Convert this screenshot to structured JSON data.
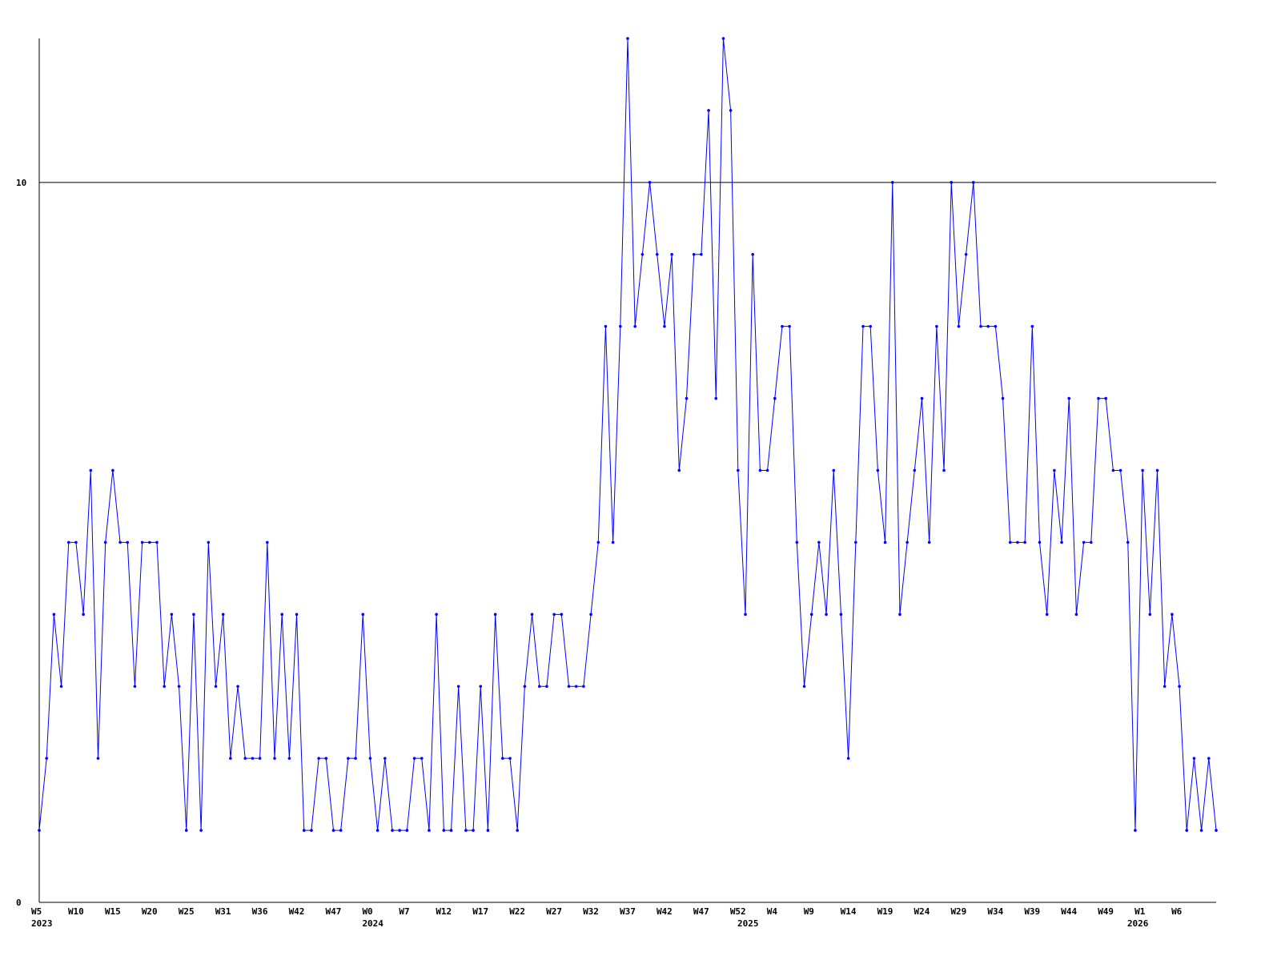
{
  "chart_data": {
    "type": "line",
    "categories": [
      "W5",
      null,
      null,
      null,
      null,
      "W10",
      null,
      null,
      null,
      null,
      "W15",
      null,
      null,
      null,
      null,
      "W20",
      null,
      null,
      null,
      null,
      "W25",
      null,
      null,
      null,
      null,
      "W31",
      null,
      null,
      null,
      null,
      "W36",
      null,
      null,
      null,
      null,
      "W42",
      null,
      null,
      null,
      null,
      "W47",
      null,
      null,
      null,
      null,
      "W0",
      null,
      null,
      null,
      null,
      "W7",
      null,
      null,
      null,
      null,
      "W12",
      null,
      null,
      null,
      null,
      "W17",
      null,
      null,
      null,
      null,
      "W22",
      null,
      null,
      null,
      null,
      "W27",
      null,
      null,
      null,
      null,
      "W32",
      null,
      null,
      null,
      null,
      "W37",
      null,
      null,
      null,
      null,
      "W42",
      null,
      null,
      null,
      null,
      "W47",
      null,
      null,
      null,
      null,
      "W52",
      null,
      null,
      null,
      null,
      "W4",
      null,
      null,
      null,
      null,
      "W9",
      null,
      null,
      null,
      null,
      "W14",
      null,
      null,
      null,
      null,
      "W19",
      null,
      null,
      null,
      null,
      "W24",
      null,
      null,
      null,
      null,
      "W29",
      null,
      null,
      null,
      null,
      "W34",
      null,
      null,
      null,
      null,
      "W39",
      null,
      null,
      null,
      null,
      "W44",
      null,
      null,
      null,
      null,
      "W49",
      null,
      null,
      null,
      null,
      "W1",
      null,
      null,
      null,
      null,
      "W6",
      null,
      null,
      null,
      null,
      null
    ],
    "category_years": [
      "2023",
      null,
      null,
      null,
      null,
      null,
      null,
      null,
      null,
      null,
      null,
      null,
      null,
      null,
      null,
      null,
      null,
      null,
      null,
      null,
      null,
      null,
      null,
      null,
      null,
      null,
      null,
      null,
      null,
      null,
      null,
      null,
      null,
      null,
      null,
      null,
      null,
      null,
      null,
      null,
      null,
      null,
      null,
      null,
      null,
      "2024",
      null,
      null,
      null,
      null,
      null,
      null,
      null,
      null,
      null,
      null,
      null,
      null,
      null,
      null,
      null,
      null,
      null,
      null,
      null,
      null,
      null,
      null,
      null,
      null,
      null,
      null,
      null,
      null,
      null,
      null,
      null,
      null,
      null,
      null,
      null,
      null,
      null,
      null,
      null,
      null,
      null,
      null,
      null,
      null,
      null,
      null,
      null,
      null,
      null,
      null,
      "2025",
      null,
      null,
      null,
      null,
      null,
      null,
      null,
      null,
      null,
      null,
      null,
      null,
      null,
      null,
      null,
      null,
      null,
      null,
      null,
      null,
      null,
      null,
      null,
      null,
      null,
      null,
      null,
      null,
      null,
      null,
      null,
      null,
      null,
      null,
      null,
      null,
      null,
      null,
      null,
      null,
      null,
      null,
      null,
      null,
      null,
      null,
      null,
      null,
      null,
      null,
      null,
      null,
      "2026",
      null,
      null,
      null,
      null,
      null,
      null,
      null,
      null,
      null,
      null,
      null
    ],
    "series": [
      {
        "color": "#0000ff",
        "values": [
          1,
          2,
          4,
          3,
          5,
          5,
          4,
          6,
          2,
          5,
          6,
          5,
          5,
          3,
          5,
          5,
          5,
          3,
          4,
          3,
          1,
          4,
          1,
          5,
          3,
          4,
          2,
          3,
          2,
          2,
          2,
          5,
          2,
          4,
          2,
          4,
          1,
          1,
          2,
          2,
          1,
          1,
          2,
          2,
          4,
          2,
          1,
          2,
          1,
          1,
          1,
          2,
          2,
          1,
          4,
          1,
          1,
          3,
          1,
          1,
          3,
          1,
          4,
          2,
          2,
          1,
          3,
          4,
          3,
          3,
          4,
          4,
          3,
          3,
          3,
          4,
          5,
          8,
          5,
          8,
          12,
          8,
          9,
          10,
          9,
          8,
          9,
          6,
          7,
          9,
          9,
          11,
          7,
          12,
          11,
          6,
          4,
          9,
          6,
          6,
          7,
          8,
          8,
          5,
          3,
          4,
          5,
          4,
          6,
          4,
          2,
          5,
          8,
          8,
          6,
          5,
          10,
          4,
          5,
          6,
          7,
          5,
          8,
          6,
          10,
          8,
          9,
          10,
          8,
          8,
          8,
          7,
          5,
          5,
          5,
          8,
          5,
          4,
          6,
          5,
          7,
          4,
          5,
          5,
          7,
          7,
          6,
          6,
          5,
          1,
          6,
          4,
          6,
          3,
          4,
          3,
          1,
          2,
          1,
          2,
          1
        ]
      }
    ],
    "ylim": [
      0,
      12
    ],
    "yticks": [
      0,
      10
    ],
    "grid": true
  }
}
